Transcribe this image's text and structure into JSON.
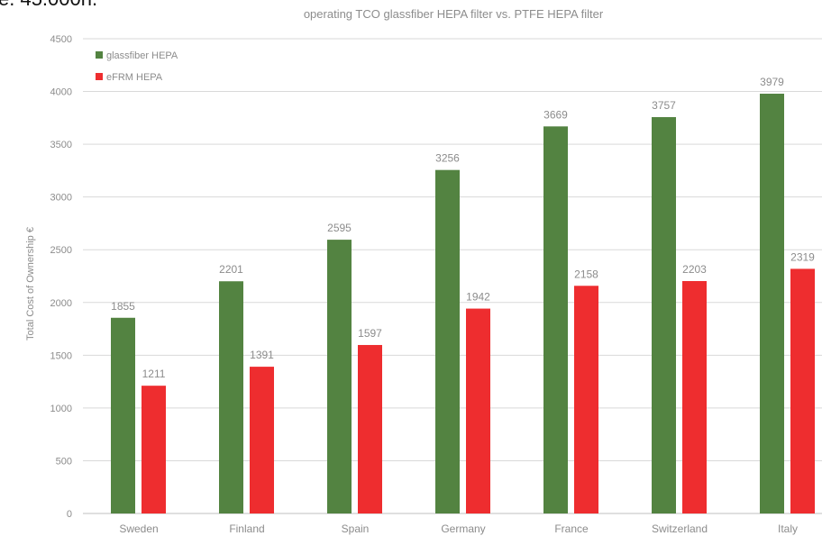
{
  "page": {
    "top_fragment": "e. 45.000h."
  },
  "colors": {
    "glassfiber": "#538341",
    "efrm": "#ee2d2f",
    "grid": "#d9d9d9",
    "text": "#8c8c8c",
    "baseline": "#bfbfbf"
  },
  "chart_data": {
    "type": "bar",
    "title": "operating TCO glassfiber HEPA filter vs. PTFE HEPA filter",
    "xlabel": "",
    "ylabel": "Total Cost of Ownership €",
    "ylim": [
      0,
      4500
    ],
    "yticks": [
      0,
      500,
      1000,
      1500,
      2000,
      2500,
      3000,
      3500,
      4000,
      4500
    ],
    "grid": true,
    "legend_position": "top-left",
    "categories": [
      "Sweden",
      "Finland",
      "Spain",
      "Germany",
      "France",
      "Switzerland",
      "Italy"
    ],
    "series": [
      {
        "name": "glassfiber HEPA",
        "color": "#538341",
        "values": [
          1855,
          2201,
          2595,
          3256,
          3669,
          3757,
          3979
        ]
      },
      {
        "name": "eFRM HEPA",
        "color": "#ee2d2f",
        "values": [
          1211,
          1391,
          1597,
          1942,
          2158,
          2203,
          2319
        ]
      }
    ]
  }
}
